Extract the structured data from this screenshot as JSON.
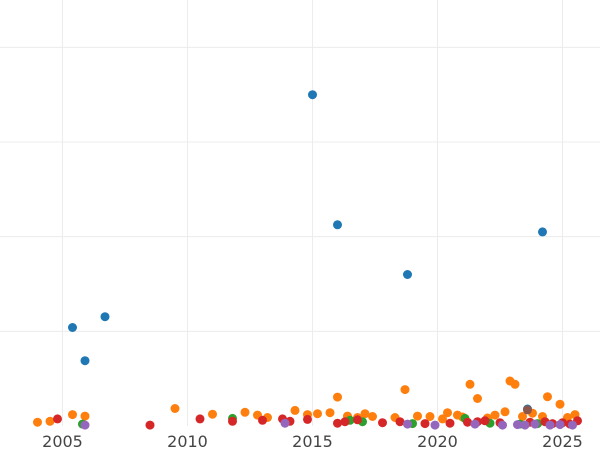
{
  "chart_data": {
    "type": "scatter",
    "title": "",
    "xlabel": "",
    "ylabel": "",
    "xlim": [
      2002.5,
      2026.5
    ],
    "ylim": [
      0,
      9000
    ],
    "x_ticks": [
      2005,
      2010,
      2015,
      2020,
      2025
    ],
    "x_tick_labels": [
      "2005",
      "2010",
      "2015",
      "2020",
      "2025"
    ],
    "y_gridlines": [
      2000,
      4000,
      6000,
      8000
    ],
    "grid": true,
    "legend": "none",
    "series": [
      {
        "color": "#1f77b4",
        "points": [
          [
            2005.4,
            2080
          ],
          [
            2005.9,
            1380
          ],
          [
            2006.7,
            2310
          ],
          [
            2015.0,
            7000
          ],
          [
            2016.0,
            4250
          ],
          [
            2018.8,
            3200
          ],
          [
            2024.2,
            4100
          ],
          [
            2023.6,
            360
          ]
        ]
      },
      {
        "color": "#ff7f0e",
        "points": [
          [
            2004.0,
            80
          ],
          [
            2004.5,
            100
          ],
          [
            2005.4,
            240
          ],
          [
            2005.9,
            210
          ],
          [
            2009.5,
            370
          ],
          [
            2011.0,
            250
          ],
          [
            2012.3,
            290
          ],
          [
            2012.8,
            230
          ],
          [
            2013.2,
            180
          ],
          [
            2014.3,
            330
          ],
          [
            2014.8,
            240
          ],
          [
            2015.2,
            260
          ],
          [
            2015.7,
            280
          ],
          [
            2016.0,
            610
          ],
          [
            2016.4,
            210
          ],
          [
            2017.1,
            260
          ],
          [
            2017.4,
            200
          ],
          [
            2018.3,
            180
          ],
          [
            2018.7,
            770
          ],
          [
            2019.2,
            210
          ],
          [
            2019.7,
            200
          ],
          [
            2020.2,
            150
          ],
          [
            2020.4,
            280
          ],
          [
            2021.0,
            190
          ],
          [
            2021.3,
            880
          ],
          [
            2021.6,
            580
          ],
          [
            2022.3,
            230
          ],
          [
            2022.7,
            300
          ],
          [
            2022.9,
            950
          ],
          [
            2023.1,
            880
          ],
          [
            2023.4,
            200
          ],
          [
            2023.8,
            270
          ],
          [
            2024.2,
            200
          ],
          [
            2024.4,
            620
          ],
          [
            2024.9,
            460
          ],
          [
            2025.2,
            180
          ],
          [
            2025.5,
            240
          ],
          [
            2016.8,
            180
          ],
          [
            2020.8,
            230
          ],
          [
            2022.0,
            170
          ]
        ]
      },
      {
        "color": "#2ca02c",
        "points": [
          [
            2005.8,
            40
          ],
          [
            2011.8,
            160
          ],
          [
            2016.5,
            120
          ],
          [
            2017.0,
            90
          ],
          [
            2019.0,
            50
          ],
          [
            2021.1,
            160
          ],
          [
            2022.1,
            60
          ],
          [
            2023.3,
            40
          ],
          [
            2024.0,
            50
          ]
        ]
      },
      {
        "color": "#d62728",
        "points": [
          [
            2004.8,
            150
          ],
          [
            2008.5,
            20
          ],
          [
            2010.5,
            150
          ],
          [
            2011.8,
            100
          ],
          [
            2013.0,
            120
          ],
          [
            2013.8,
            150
          ],
          [
            2014.1,
            100
          ],
          [
            2014.8,
            140
          ],
          [
            2016.0,
            60
          ],
          [
            2016.3,
            90
          ],
          [
            2016.8,
            130
          ],
          [
            2017.8,
            70
          ],
          [
            2018.5,
            90
          ],
          [
            2019.5,
            50
          ],
          [
            2020.5,
            60
          ],
          [
            2021.2,
            80
          ],
          [
            2021.6,
            90
          ],
          [
            2021.9,
            110
          ],
          [
            2022.5,
            70
          ],
          [
            2023.7,
            80
          ],
          [
            2024.3,
            90
          ],
          [
            2024.6,
            50
          ],
          [
            2025.0,
            70
          ],
          [
            2025.3,
            40
          ],
          [
            2025.6,
            110
          ]
        ]
      },
      {
        "color": "#9467bd",
        "points": [
          [
            2005.9,
            20
          ],
          [
            2013.9,
            60
          ],
          [
            2018.8,
            40
          ],
          [
            2019.9,
            20
          ],
          [
            2021.5,
            40
          ],
          [
            2022.6,
            20
          ],
          [
            2023.2,
            30
          ],
          [
            2023.5,
            20
          ],
          [
            2023.9,
            40
          ],
          [
            2024.5,
            20
          ],
          [
            2024.9,
            30
          ],
          [
            2025.4,
            20
          ]
        ]
      },
      {
        "color": "#8c564b",
        "points": [
          [
            2023.6,
            340
          ]
        ]
      }
    ]
  }
}
